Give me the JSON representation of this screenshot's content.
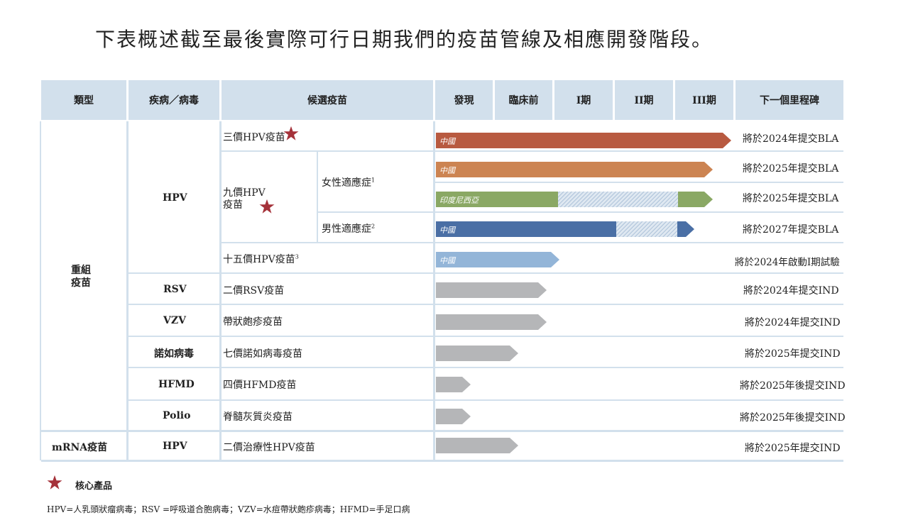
{
  "title": "下表概述截至最後實際可行日期我們的疫苗管線及相應開發階段。",
  "headers": {
    "type": "類型",
    "disease": "疾病／病毒",
    "candidate": "候選疫苗",
    "discovery": "發現",
    "preclinical": "臨床前",
    "phase1": "I期",
    "phase2": "II期",
    "phase3": "III期",
    "milestone": "下一個里程碑"
  },
  "types": {
    "recombinant": "重組\n疫苗",
    "mrna": "mRNA疫苗"
  },
  "diseases": {
    "hpv": "HPV",
    "rsv": "RSV",
    "vzv": "VZV",
    "noro": "諾如病毒",
    "hfmd": "HFMD",
    "polio": "Polio",
    "hpv2": "HPV"
  },
  "candidates": {
    "hpv3": "三價HPV疫苗",
    "hpv9_line1": "九價HPV",
    "hpv9_line2": "疫苗",
    "female": "女性適應症",
    "female_sup": "1",
    "male": "男性適應症",
    "male_sup": "2",
    "hpv15": "十五價HPV疫苗",
    "hpv15_sup": "3",
    "rsv": "二價RSV疫苗",
    "vzv": "帶狀皰疹疫苗",
    "noro": "七價諾如病毒疫苗",
    "hfmd": "四價HFMD疫苗",
    "polio": "脊髓灰質炎疫苗",
    "mrna_hpv": "二價治療性HPV疫苗"
  },
  "bar_labels": {
    "china": "中國",
    "indonesia": "印度尼西亞"
  },
  "milestones": {
    "hpv3": "將於2024年提交BLA",
    "hpv9_f_cn": "將於2025年提交BLA",
    "hpv9_f_id": "將於2025年提交BLA",
    "hpv9_m": "將於2027年提交BLA",
    "hpv15": "將於2024年啟動I期試驗",
    "rsv": "將於2024年提交IND",
    "vzv": "將於2024年提交IND",
    "noro": "將於2025年提交IND",
    "hfmd": "將於2025年後提交IND",
    "polio": "將於2025年後提交IND",
    "mrna_hpv": "將於2025年提交IND"
  },
  "legend": {
    "core_product": "核心產品"
  },
  "footnote": "HPV=人乳頭狀瘤病毒；RSV =呼吸道合胞病毒；VZV=水痘帶狀皰疹病毒；HFMD=手足口病",
  "colors": {
    "header_bg": "#d2e0ec",
    "hpv3_bar": "#b85a40",
    "hpv9_f_cn_bar": "#cc8452",
    "hpv9_f_id_bar": "#8aa864",
    "hpv9_m_bar": "#4a6fa5",
    "hpv15_bar": "#93b5d8",
    "grey_bar": "#b5b6b8",
    "star": "#a5323a"
  }
}
